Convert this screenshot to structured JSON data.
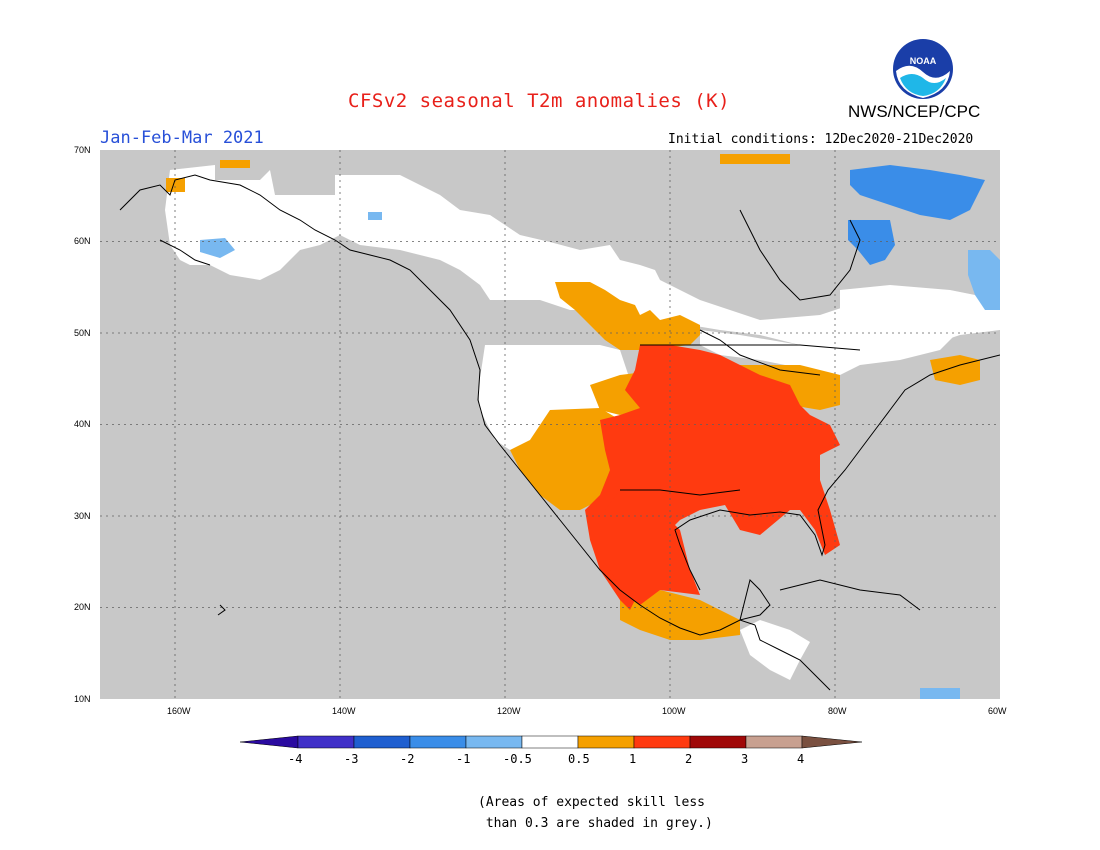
{
  "title": "CFSv2 seasonal T2m anomalies (K)",
  "agency": "NWS/NCEP/CPC",
  "logo_text": "NOAA",
  "period": "Jan-Feb-Mar 2021",
  "initial_conditions": "Initial conditions: 12Dec2020-21Dec2020",
  "lat_labels": [
    "70N",
    "60N",
    "50N",
    "40N",
    "30N",
    "20N",
    "10N"
  ],
  "lon_labels": [
    "160W",
    "140W",
    "120W",
    "100W",
    "80W",
    "60W"
  ],
  "colorbar": {
    "tick_labels": [
      "-4",
      "-3",
      "-2",
      "-1",
      "-0.5",
      "0.5",
      "1",
      "2",
      "3",
      "4"
    ],
    "colors": [
      "#2a0aa0",
      "#4030c8",
      "#1f5fd0",
      "#3a8de8",
      "#78b8f0",
      "#ffffff",
      "#f5a000",
      "#ff3a10",
      "#a00808",
      "#c8a090",
      "#7a5040"
    ]
  },
  "note_line1": "(Areas of expected skill less",
  "note_line2": " than 0.3 are shaded in grey.)",
  "colors": {
    "grey": "#c8c8c8",
    "white": "#ffffff",
    "orange": "#f5a000",
    "red": "#ff3a10",
    "lightblue": "#78b8f0",
    "blue": "#3a8de8"
  }
}
